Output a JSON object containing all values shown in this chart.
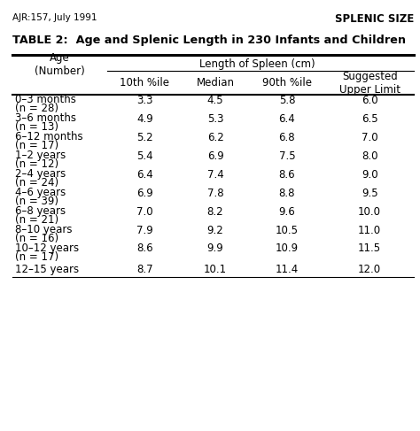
{
  "header_left": "AJR:157, July 1991",
  "header_right": "SPLENIC SIZE",
  "title": "TABLE 2:  Age and Splenic Length in 230 Infants and Children",
  "col_header_main": "Length of Spleen (cm)",
  "col_headers": [
    "Age\n(Number)",
    "10th %ile",
    "Median",
    "90th %ile",
    "Suggested\nUpper Limit"
  ],
  "rows": [
    [
      "0–3 months\n(n = 28)",
      "3.3",
      "4.5",
      "5.8",
      "6.0"
    ],
    [
      "3–6 months\n(n = 13)",
      "4.9",
      "5.3",
      "6.4",
      "6.5"
    ],
    [
      "6–12 months\n(n = 17)",
      "5.2",
      "6.2",
      "6.8",
      "7.0"
    ],
    [
      "1–2 years\n(n = 12)",
      "5.4",
      "6.9",
      "7.5",
      "8.0"
    ],
    [
      "2–4 years\n(n = 24)",
      "6.4",
      "7.4",
      "8.6",
      "9.0"
    ],
    [
      "4–6 years\n(n = 39)",
      "6.9",
      "7.8",
      "8.8",
      "9.5"
    ],
    [
      "6–8 years\n(n = 21)",
      "7.0",
      "8.2",
      "9.6",
      "10.0"
    ],
    [
      "8–10 years\n(n = 16)",
      "7.9",
      "9.2",
      "10.5",
      "11.0"
    ],
    [
      "10–12 years\n(n = 17)",
      "8.6",
      "9.9",
      "10.9",
      "11.5"
    ],
    [
      "12–15 years",
      "8.7",
      "10.1",
      "11.4",
      "12.0"
    ]
  ],
  "background_color": "#ffffff",
  "text_color": "#000000"
}
